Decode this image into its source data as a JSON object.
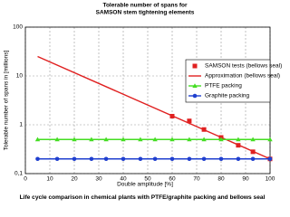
{
  "chart_data": {
    "type": "line",
    "title": "Tolerable number of spans for",
    "subtitle": "SAMSON stem tightening elements",
    "x_label": "Double amplitude [%]",
    "y_label": "Tolerable number of spans in [millions]",
    "caption": "Life cycle comparison in chemical plants with PTFE/graphite packing and bellows seal",
    "xlim": [
      0,
      100
    ],
    "xticks": [
      0,
      10,
      20,
      30,
      40,
      50,
      60,
      70,
      80,
      90,
      100
    ],
    "ylim": [
      0.1,
      100
    ],
    "yticks": [
      {
        "value": 0.1,
        "label": "0,1"
      },
      1,
      10,
      100
    ],
    "log_y": true,
    "grid": true,
    "legend": "upper right",
    "series": [
      {
        "name": "SAMSON tests (bellows seal)",
        "color": "#e02020",
        "marker": "square",
        "line": false,
        "x": [
          60,
          67,
          73,
          80,
          87,
          93,
          100
        ],
        "values": [
          1.5,
          1.2,
          0.8,
          0.55,
          0.38,
          0.28,
          0.2
        ]
      },
      {
        "name": "Approximation (bellows seal)",
        "color": "#e02020",
        "marker": "none",
        "line": true,
        "x": [
          5,
          100
        ],
        "values": [
          25,
          0.2
        ]
      },
      {
        "name": "PTFE packing",
        "color": "#44dd22",
        "marker": "triangle",
        "line": true,
        "x": [
          5,
          13,
          20,
          27,
          33,
          40,
          47,
          53,
          60,
          67,
          73,
          80,
          87,
          93,
          100
        ],
        "values": [
          0.5,
          0.5,
          0.5,
          0.5,
          0.5,
          0.5,
          0.5,
          0.5,
          0.5,
          0.5,
          0.5,
          0.5,
          0.5,
          0.5,
          0.5
        ]
      },
      {
        "name": "Graphite packing",
        "color": "#1f3fcf",
        "marker": "circle",
        "line": true,
        "x": [
          5,
          13,
          20,
          27,
          33,
          40,
          47,
          53,
          60,
          67,
          73,
          80,
          87,
          93,
          100
        ],
        "values": [
          0.2,
          0.2,
          0.2,
          0.2,
          0.2,
          0.2,
          0.2,
          0.2,
          0.2,
          0.2,
          0.2,
          0.2,
          0.2,
          0.2,
          0.2
        ]
      }
    ]
  }
}
